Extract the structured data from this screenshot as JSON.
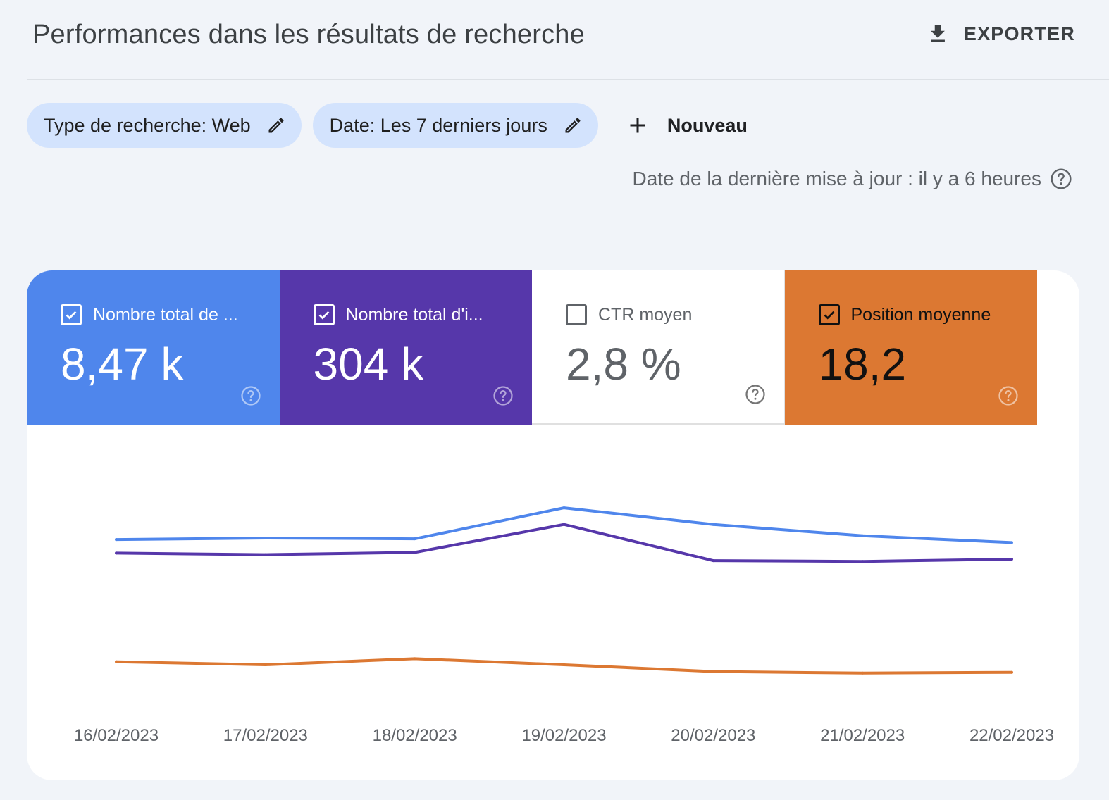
{
  "header": {
    "title": "Performances dans les résultats de recherche",
    "export_label": "EXPORTER"
  },
  "filters": {
    "search_type_chip": "Type de recherche: Web",
    "date_chip": "Date: Les 7 derniers jours",
    "new_label": "Nouveau"
  },
  "last_update": "Date de la dernière mise à jour : il y a 6 heures",
  "metrics": [
    {
      "label": "Nombre total de ...",
      "value": "8,47 k",
      "checked": true,
      "color": "#4f86ec"
    },
    {
      "label": "Nombre total d'i...",
      "value": "304 k",
      "checked": true,
      "color": "#5637aa"
    },
    {
      "label": "CTR moyen",
      "value": "2,8 %",
      "checked": false,
      "color": "#ffffff"
    },
    {
      "label": "Position moyenne",
      "value": "18,2",
      "checked": true,
      "color": "#dc7832"
    }
  ],
  "chart_data": {
    "type": "line",
    "categories": [
      "16/02/2023",
      "17/02/2023",
      "18/02/2023",
      "19/02/2023",
      "20/02/2023",
      "21/02/2023",
      "22/02/2023"
    ],
    "series": [
      {
        "color": "#4f86ec",
        "values": [
          1.8,
          1.82,
          1.81,
          2.22,
          2.0,
          1.85,
          1.76
        ]
      },
      {
        "color": "#5637aa",
        "values": [
          1.62,
          1.6,
          1.63,
          2.0,
          1.52,
          1.51,
          1.54
        ]
      },
      {
        "color": "#dc7832",
        "values": [
          0.18,
          0.14,
          0.22,
          0.14,
          0.05,
          0.03,
          0.04
        ]
      }
    ],
    "ylim": [
      0,
      2.8
    ],
    "grid": false,
    "legend": "none"
  }
}
